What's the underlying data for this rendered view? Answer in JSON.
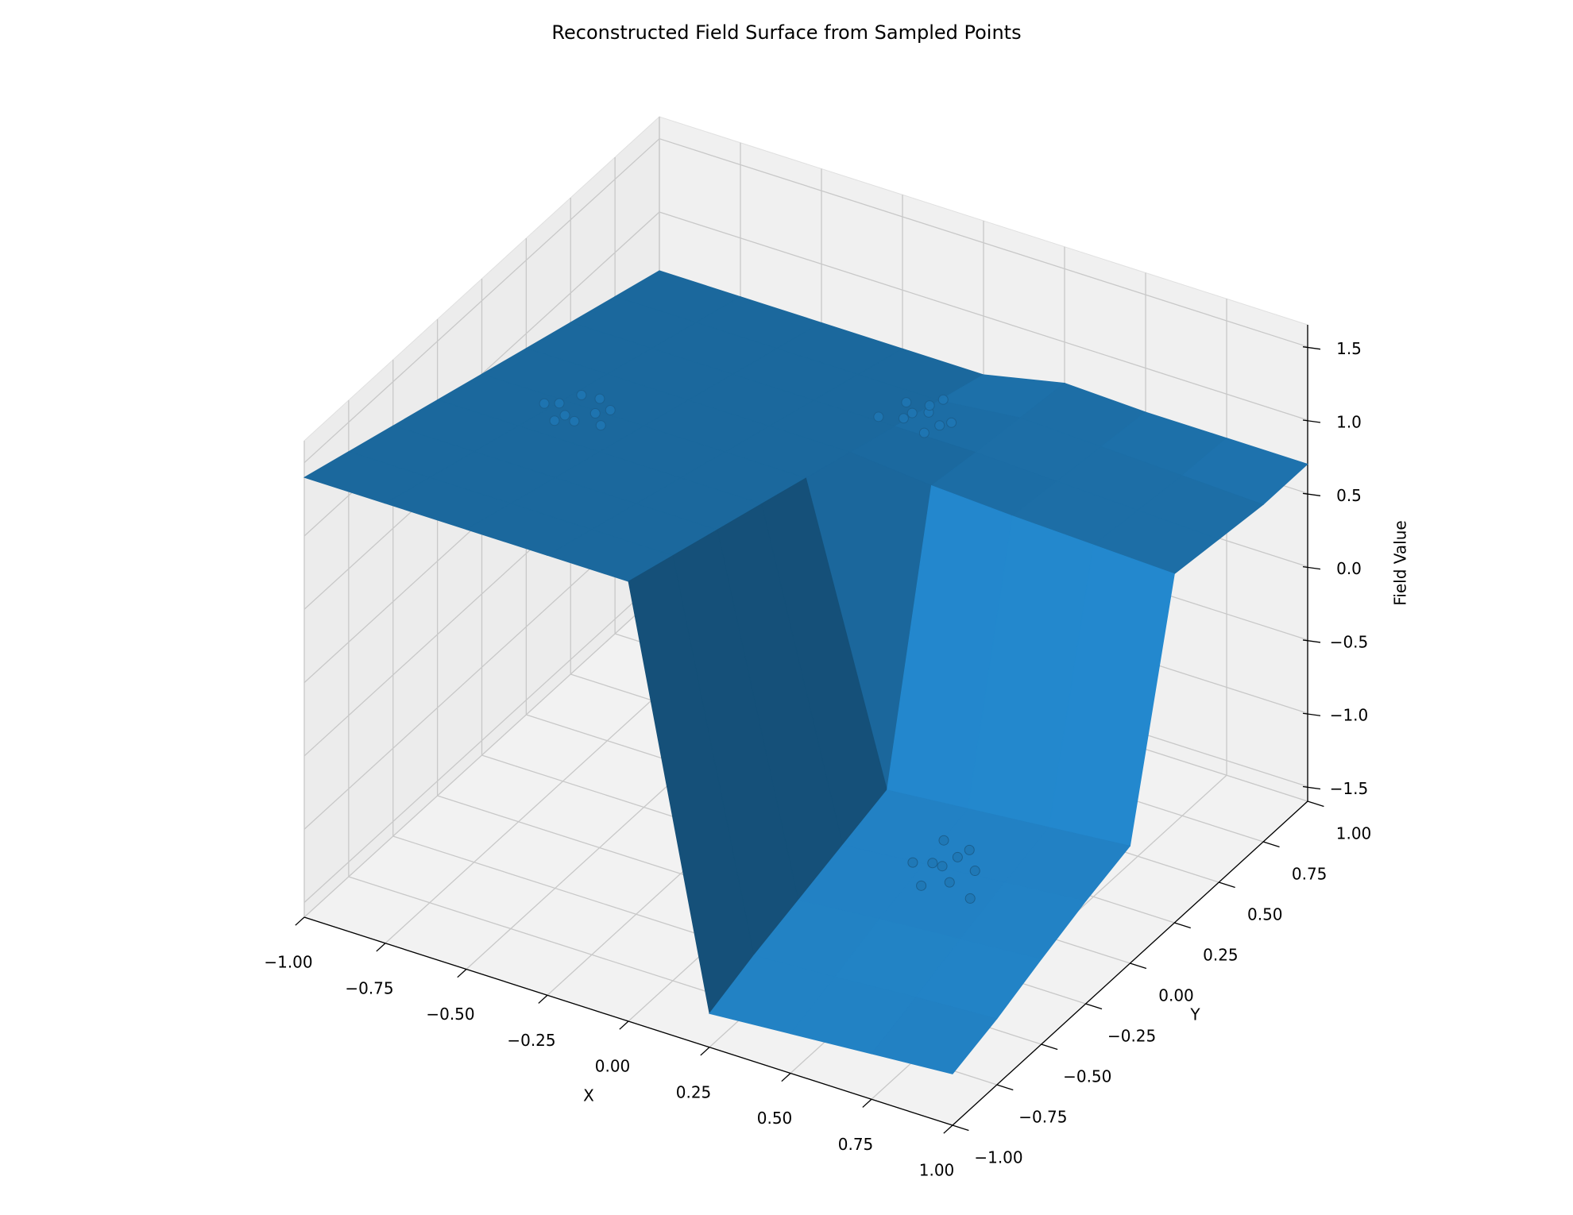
{
  "chart_data": {
    "type": "surface3d",
    "title": "Reconstructed Field Surface from Sampled Points",
    "xlabel": "X",
    "ylabel": "Y",
    "zlabel": "Field Value",
    "color": "#1f77b4",
    "grid": true,
    "x": [
      -1,
      -0.75,
      -0.5,
      -0.25,
      0,
      0.25,
      0.5,
      0.75,
      1
    ],
    "y": [
      -1,
      -0.75,
      -0.5,
      -0.25,
      0,
      0.25,
      0.5,
      0.75,
      1
    ],
    "z": [
      [
        1.4,
        1.4,
        1.4,
        1.4,
        1.4,
        -1.37,
        -1.33,
        -1.29,
        -1.25
      ],
      [
        1.3,
        1.3,
        1.3,
        1.3,
        1.3,
        -1.25,
        -1.22,
        -1.18,
        -1.15
      ],
      [
        1.2,
        1.2,
        1.2,
        1.2,
        1.2,
        -1.15,
        -1.1,
        -1.06,
        -1.02
      ],
      [
        1.1,
        1.1,
        1.1,
        1.1,
        1.1,
        -1.05,
        -1.0,
        -0.95,
        -0.9
      ],
      [
        1.0,
        1.0,
        1.0,
        1.0,
        1.0,
        -0.95,
        -0.9,
        -0.85,
        -0.8
      ],
      [
        0.9,
        0.9,
        0.9,
        0.9,
        0.9,
        0.85,
        0.82,
        0.8,
        0.78
      ],
      [
        0.8,
        0.8,
        0.8,
        0.8,
        0.8,
        0.8,
        0.78,
        0.76,
        0.74
      ],
      [
        0.7,
        0.7,
        0.7,
        0.7,
        0.7,
        0.76,
        0.74,
        0.72,
        0.7
      ],
      [
        0.6,
        0.6,
        0.6,
        0.6,
        0.6,
        0.72,
        0.7,
        0.7,
        0.7
      ]
    ],
    "points": {
      "x": [
        -0.75,
        -0.7,
        -0.65,
        -0.72,
        -0.66,
        -0.62,
        -0.78,
        -0.68,
        -0.71,
        -0.6,
        0.0,
        0.05,
        0.08,
        -0.03,
        0.02,
        0.1,
        -0.05,
        0.04,
        0.12,
        0.01,
        0.5,
        0.55,
        0.58,
        0.48,
        0.52,
        0.62,
        0.45,
        0.57,
        0.66,
        0.53
      ],
      "y": [
        -0.02,
        -0.08,
        0.0,
        0.05,
        -0.1,
        0.03,
        -0.05,
        0.08,
        -0.12,
        -0.06,
        0.55,
        0.6,
        0.52,
        0.62,
        0.66,
        0.57,
        0.5,
        0.7,
        0.6,
        0.58,
        -0.2,
        -0.15,
        -0.25,
        -0.1,
        -0.3,
        -0.18,
        -0.22,
        -0.12,
        -0.28,
        -0.2
      ],
      "z": [
        1.0,
        1.02,
        0.98,
        1.0,
        1.03,
        0.99,
        1.01,
        0.97,
        1.02,
        1.0,
        0.8,
        0.82,
        0.79,
        0.81,
        0.78,
        0.8,
        0.83,
        0.79,
        0.8,
        0.81,
        -1.05,
        -1.03,
        -1.07,
        -1.02,
        -1.08,
        -1.04,
        -1.06,
        -1.0,
        -1.09,
        -1.05
      ]
    },
    "xlim": [
      -1,
      1
    ],
    "ylim": [
      -1,
      1
    ],
    "zlim": [
      -1.6,
      1.65
    ],
    "xticks": [
      {
        "value": -1,
        "label": "−1.00"
      },
      {
        "value": -0.75,
        "label": "−0.75"
      },
      {
        "value": -0.5,
        "label": "−0.50"
      },
      {
        "value": -0.25,
        "label": "−0.25"
      },
      {
        "value": 0,
        "label": "0.00"
      },
      0.25,
      {
        "value": 0.5,
        "label": "0.50"
      },
      0.75,
      {
        "value": 1,
        "label": "1.00"
      }
    ],
    "yticks": [
      {
        "value": -1,
        "label": "−1.00"
      },
      {
        "value": -0.75,
        "label": "−0.75"
      },
      {
        "value": -0.5,
        "label": "−0.50"
      },
      {
        "value": -0.25,
        "label": "−0.25"
      },
      {
        "value": 0,
        "label": "0.00"
      },
      0.25,
      {
        "value": 0.5,
        "label": "0.50"
      },
      0.75,
      {
        "value": 1,
        "label": "1.00"
      }
    ],
    "zticks": [
      {
        "value": -1.5,
        "label": "−1.5"
      },
      {
        "value": -1,
        "label": "−1.0"
      },
      {
        "value": -0.5,
        "label": "−0.5"
      },
      {
        "value": 0,
        "label": "0.0"
      },
      0.5,
      {
        "value": 1,
        "label": "1.0"
      },
      1.5
    ]
  }
}
